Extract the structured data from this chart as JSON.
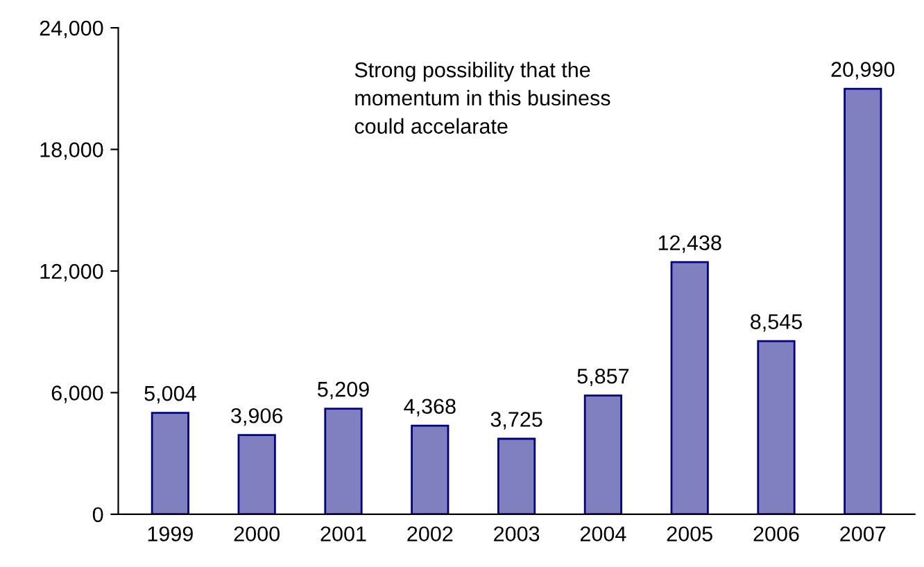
{
  "chart_data": {
    "type": "bar",
    "categories": [
      "1999",
      "2000",
      "2001",
      "2002",
      "2003",
      "2004",
      "2005",
      "2006",
      "2007"
    ],
    "values": [
      5004,
      3906,
      5209,
      4368,
      3725,
      5857,
      12438,
      8545,
      20990
    ],
    "value_labels": [
      "5,004",
      "3,906",
      "5,209",
      "4,368",
      "3,725",
      "5,857",
      "12,438",
      "8,545",
      "20,990"
    ],
    "color": "#8080c0",
    "ylim": [
      0,
      24000
    ],
    "yticks": [
      {
        "value": 0,
        "label": "0"
      },
      {
        "value": 6000,
        "label": "6,000"
      },
      {
        "value": 12000,
        "label": "12,000"
      },
      {
        "value": 18000,
        "label": "18,000"
      },
      {
        "value": 24000,
        "label": "24,000"
      }
    ],
    "annotations": [
      "Strong possibility that the\nmomentum in this business\ncould accelarate"
    ],
    "grid": false,
    "legend": false
  }
}
